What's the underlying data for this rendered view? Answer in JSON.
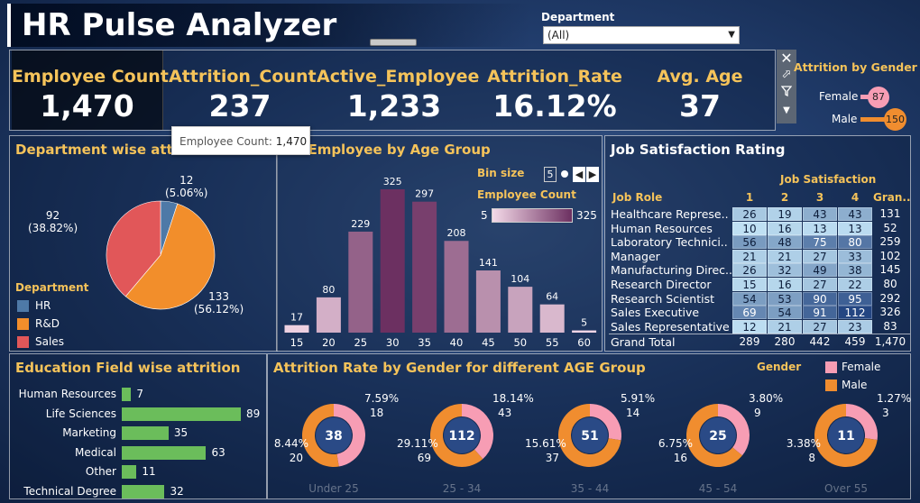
{
  "header": {
    "title": "HR Pulse Analyzer",
    "department_label": "Department",
    "department_value": "(All)"
  },
  "kpis": [
    {
      "label": "Employee Count",
      "value": "1,470"
    },
    {
      "label": "Attrition_Count",
      "value": "237"
    },
    {
      "label": "Active_Employee",
      "value": "1,233"
    },
    {
      "label": "Attrition_Rate",
      "value": "16.12%"
    },
    {
      "label": "Avg. Age",
      "value": "37"
    }
  ],
  "tooltip": {
    "label": "Employee Count:",
    "value": "1,470"
  },
  "toolbar_icons": [
    "close-icon",
    "popout-icon",
    "filter-icon",
    "menu-icon"
  ],
  "gender_panel": {
    "title": "Attrition by Gender",
    "items": [
      {
        "label": "Female",
        "value": 87,
        "color": "#f79db4"
      },
      {
        "label": "Male",
        "value": 150,
        "color": "#f08d2f"
      }
    ]
  },
  "dept_panel": {
    "title": "Department wise attrition",
    "legend_title": "Department",
    "legend": [
      {
        "label": "HR",
        "color": "#4e79a7"
      },
      {
        "label": "R&D",
        "color": "#f28e2b"
      },
      {
        "label": "Sales",
        "color": "#e15759"
      }
    ],
    "labels": {
      "hr": {
        "count": "12",
        "pct": "(5.06%)"
      },
      "rd": {
        "count": "133",
        "pct": "(56.12%)"
      },
      "sales": {
        "count": "92",
        "pct": "(38.82%)"
      }
    }
  },
  "age_panel": {
    "title": "Number of Employee by Age Group",
    "bin_size_label": "Bin size",
    "bin_size_value": "5",
    "legend_title": "Employee Count",
    "legend_min": "5",
    "legend_max": "325"
  },
  "job_panel": {
    "title": "Job Satisfaction Rating",
    "col_group_header": "Job Satisfaction",
    "row_header": "Job Role",
    "columns": [
      "1",
      "2",
      "3",
      "4",
      "Gran.."
    ],
    "rows": [
      {
        "role": "Healthcare Represe..",
        "vals": [
          "26",
          "19",
          "43",
          "43"
        ],
        "total": "131"
      },
      {
        "role": "Human Resources",
        "vals": [
          "10",
          "16",
          "13",
          "13"
        ],
        "total": "52"
      },
      {
        "role": "Laboratory Technici..",
        "vals": [
          "56",
          "48",
          "75",
          "80"
        ],
        "total": "259"
      },
      {
        "role": "Manager",
        "vals": [
          "21",
          "21",
          "27",
          "33"
        ],
        "total": "102"
      },
      {
        "role": "Manufacturing Direc..",
        "vals": [
          "26",
          "32",
          "49",
          "38"
        ],
        "total": "145"
      },
      {
        "role": "Research Director",
        "vals": [
          "15",
          "16",
          "27",
          "22"
        ],
        "total": "80"
      },
      {
        "role": "Research Scientist",
        "vals": [
          "54",
          "53",
          "90",
          "95"
        ],
        "total": "292"
      },
      {
        "role": "Sales Executive",
        "vals": [
          "69",
          "54",
          "91",
          "112"
        ],
        "total": "326"
      },
      {
        "role": "Sales Representative",
        "vals": [
          "12",
          "21",
          "27",
          "23"
        ],
        "total": "83"
      }
    ],
    "grand_total": {
      "role": "Grand Total",
      "vals": [
        "289",
        "280",
        "442",
        "459"
      ],
      "total": "1,470"
    }
  },
  "edu_panel": {
    "title": "Education Field wise attrition",
    "items": [
      {
        "label": "Human Resources",
        "value": "7"
      },
      {
        "label": "Life Sciences",
        "value": "89"
      },
      {
        "label": "Marketing",
        "value": "35"
      },
      {
        "label": "Medical",
        "value": "63"
      },
      {
        "label": "Other",
        "value": "11"
      },
      {
        "label": "Technical Degree",
        "value": "32"
      }
    ]
  },
  "donut_panel": {
    "title": "Attrition Rate by Gender for different AGE Group",
    "legend_title": "Gender",
    "legend": [
      {
        "label": "Female",
        "color": "#f79db4"
      },
      {
        "label": "Male",
        "color": "#f08d2f"
      }
    ],
    "groups": [
      {
        "age": "Under 25",
        "total": "38",
        "f_pct": "7.59%",
        "f_cnt": "18",
        "m_pct": "8.44%",
        "m_cnt": "20",
        "female": 18,
        "male": 20
      },
      {
        "age": "25 - 34",
        "total": "112",
        "f_pct": "18.14%",
        "f_cnt": "43",
        "m_pct": "29.11%",
        "m_cnt": "69",
        "female": 43,
        "male": 69
      },
      {
        "age": "35 - 44",
        "total": "51",
        "f_pct": "5.91%",
        "f_cnt": "14",
        "m_pct": "15.61%",
        "m_cnt": "37",
        "female": 14,
        "male": 37
      },
      {
        "age": "45 - 54",
        "total": "25",
        "f_pct": "3.80%",
        "f_cnt": "9",
        "m_pct": "6.75%",
        "m_cnt": "16",
        "female": 9,
        "male": 16
      },
      {
        "age": "Over 55",
        "total": "11",
        "f_pct": "1.27%",
        "f_cnt": "3",
        "m_pct": "3.38%",
        "m_cnt": "8",
        "female": 3,
        "male": 8
      }
    ]
  },
  "chart_data": [
    {
      "type": "pie",
      "title": "Department wise attrition",
      "categories": [
        "HR",
        "R&D",
        "Sales"
      ],
      "values": [
        12,
        133,
        92
      ],
      "percent_labels": [
        "(5.06%)",
        "(56.12%)",
        "(38.82%)"
      ]
    },
    {
      "type": "bar",
      "title": "Number of Employee by Age Group",
      "categories": [
        "15",
        "20",
        "25",
        "30",
        "35",
        "40",
        "45",
        "50",
        "55",
        "60"
      ],
      "values": [
        17,
        80,
        229,
        325,
        297,
        208,
        141,
        104,
        64,
        5
      ],
      "ylim": [
        0,
        325
      ]
    },
    {
      "type": "bar",
      "title": "Education Field wise attrition",
      "categories": [
        "Human Resources",
        "Life Sciences",
        "Marketing",
        "Medical",
        "Other",
        "Technical Degree"
      ],
      "values": [
        7,
        89,
        35,
        63,
        11,
        32
      ]
    }
  ]
}
